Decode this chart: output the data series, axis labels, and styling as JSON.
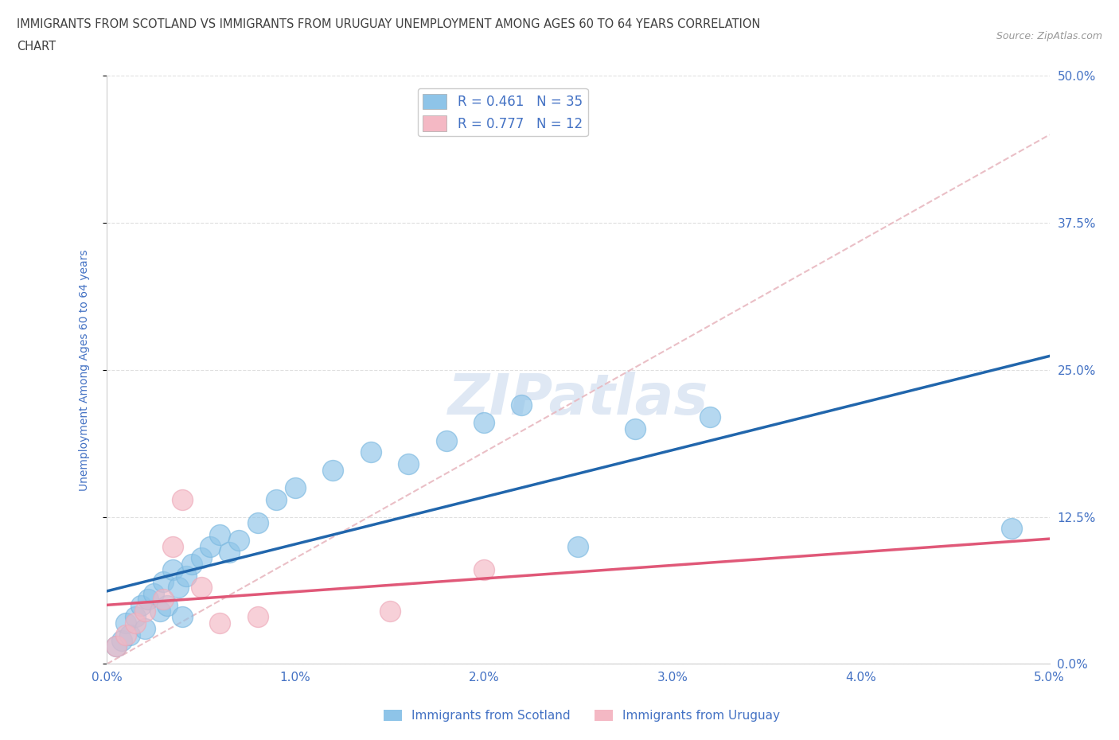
{
  "title_line1": "IMMIGRANTS FROM SCOTLAND VS IMMIGRANTS FROM URUGUAY UNEMPLOYMENT AMONG AGES 60 TO 64 YEARS CORRELATION",
  "title_line2": "CHART",
  "source": "Source: ZipAtlas.com",
  "ylabel": "Unemployment Among Ages 60 to 64 years",
  "xlim": [
    0.0,
    5.0
  ],
  "ylim": [
    0.0,
    50.0
  ],
  "xticks": [
    0.0,
    1.0,
    2.0,
    3.0,
    4.0,
    5.0
  ],
  "yticks": [
    0.0,
    12.5,
    25.0,
    37.5,
    50.0
  ],
  "xtick_labels": [
    "0.0%",
    "1.0%",
    "2.0%",
    "3.0%",
    "4.0%",
    "5.0%"
  ],
  "ytick_labels": [
    "0.0%",
    "12.5%",
    "25.0%",
    "37.5%",
    "50.0%"
  ],
  "scotland_color": "#8ec4e8",
  "scotland_edge_color": "#7ab8e0",
  "uruguay_color": "#f4b8c4",
  "uruguay_edge_color": "#eda8b8",
  "scotland_line_color": "#2166ac",
  "uruguay_line_color": "#e05878",
  "dashed_line_color": "#e8b8c0",
  "R_scotland": 0.461,
  "N_scotland": 35,
  "R_uruguay": 0.777,
  "N_uruguay": 12,
  "legend_label_scotland": "R = 0.461   N = 35",
  "legend_label_uruguay": "R = 0.777   N = 12",
  "scotland_x": [
    0.05,
    0.08,
    0.1,
    0.12,
    0.15,
    0.18,
    0.2,
    0.22,
    0.25,
    0.28,
    0.3,
    0.32,
    0.35,
    0.38,
    0.4,
    0.42,
    0.45,
    0.5,
    0.55,
    0.6,
    0.65,
    0.7,
    0.8,
    0.9,
    1.0,
    1.2,
    1.4,
    1.6,
    1.8,
    2.0,
    2.2,
    2.5,
    2.8,
    3.2,
    4.8
  ],
  "scotland_y": [
    1.5,
    2.0,
    3.5,
    2.5,
    4.0,
    5.0,
    3.0,
    5.5,
    6.0,
    4.5,
    7.0,
    5.0,
    8.0,
    6.5,
    4.0,
    7.5,
    8.5,
    9.0,
    10.0,
    11.0,
    9.5,
    10.5,
    12.0,
    14.0,
    15.0,
    16.5,
    18.0,
    17.0,
    19.0,
    20.5,
    22.0,
    10.0,
    20.0,
    21.0,
    11.5
  ],
  "uruguay_x": [
    0.05,
    0.1,
    0.15,
    0.2,
    0.3,
    0.35,
    0.4,
    0.5,
    0.6,
    0.8,
    1.5,
    2.0
  ],
  "uruguay_y": [
    1.5,
    2.5,
    3.5,
    4.5,
    5.5,
    10.0,
    14.0,
    6.5,
    3.5,
    4.0,
    4.5,
    8.0
  ],
  "watermark": "ZIPatlas",
  "background_color": "#ffffff",
  "grid_color": "#d8d8d8",
  "tick_color": "#4472c4",
  "title_color": "#404040",
  "title_fontsize": 11,
  "axis_label_fontsize": 10,
  "tick_fontsize": 11,
  "bottom_legend_labels": [
    "Immigrants from Scotland",
    "Immigrants from Uruguay"
  ]
}
